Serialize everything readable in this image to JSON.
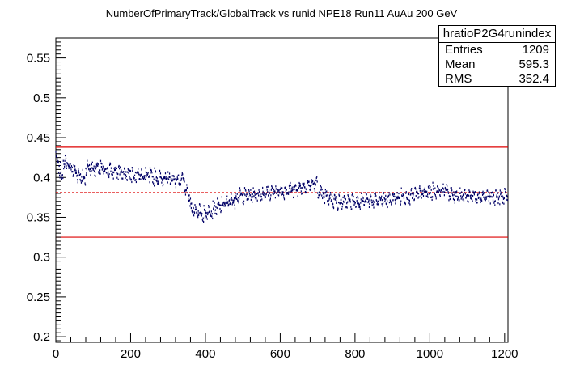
{
  "chart_data": {
    "type": "scatter",
    "title": "NumberOfPrimaryTrack/GlobalTrack vs runid NPE18 Run11 AuAu 200 GeV",
    "xlabel": "",
    "ylabel": "",
    "xlim": [
      0,
      1209
    ],
    "ylim": [
      0.193,
      0.575
    ],
    "x_ticks": [
      0,
      200,
      400,
      600,
      800,
      1000,
      1200
    ],
    "y_ticks": [
      0.2,
      0.25,
      0.3,
      0.35,
      0.4,
      0.45,
      0.5,
      0.55
    ],
    "x_tick_labels": [
      "0",
      "200",
      "400",
      "600",
      "800",
      "1000",
      "1200"
    ],
    "y_tick_labels": [
      "0.2",
      "0.25",
      "0.3",
      "0.35",
      "0.4",
      "0.45",
      "0.5",
      "0.55"
    ],
    "reference_lines": [
      {
        "value": 0.438,
        "style": "solid",
        "color": "#dd0000"
      },
      {
        "value": 0.381,
        "style": "dashed",
        "color": "#dd0000"
      },
      {
        "value": 0.325,
        "style": "solid",
        "color": "#dd0000"
      }
    ],
    "marker_color": "#000066",
    "grid": false,
    "segments": [
      {
        "x_start": 0,
        "x_end": 20,
        "y_start": 0.425,
        "y_end": 0.395
      },
      {
        "x_start": 20,
        "x_end": 80,
        "y_start": 0.42,
        "y_end": 0.395
      },
      {
        "x_start": 80,
        "x_end": 345,
        "y_start": 0.412,
        "y_end": 0.395
      },
      {
        "x_start": 345,
        "x_end": 360,
        "y_start": 0.385,
        "y_end": 0.372
      },
      {
        "x_start": 360,
        "x_end": 400,
        "y_start": 0.362,
        "y_end": 0.352
      },
      {
        "x_start": 400,
        "x_end": 480,
        "y_start": 0.355,
        "y_end": 0.372
      },
      {
        "x_start": 480,
        "x_end": 600,
        "y_start": 0.375,
        "y_end": 0.382
      },
      {
        "x_start": 600,
        "x_end": 700,
        "y_start": 0.382,
        "y_end": 0.392
      },
      {
        "x_start": 700,
        "x_end": 750,
        "y_start": 0.38,
        "y_end": 0.37
      },
      {
        "x_start": 750,
        "x_end": 900,
        "y_start": 0.368,
        "y_end": 0.372
      },
      {
        "x_start": 900,
        "x_end": 1050,
        "y_start": 0.373,
        "y_end": 0.385
      },
      {
        "x_start": 1050,
        "x_end": 1209,
        "y_start": 0.378,
        "y_end": 0.374
      }
    ]
  },
  "stats": {
    "name": "hratioP2G4runindex",
    "entries_label": "Entries",
    "entries_value": "1209",
    "mean_label": "Mean",
    "mean_value": "595.3",
    "rms_label": "RMS",
    "rms_value": "352.4"
  }
}
